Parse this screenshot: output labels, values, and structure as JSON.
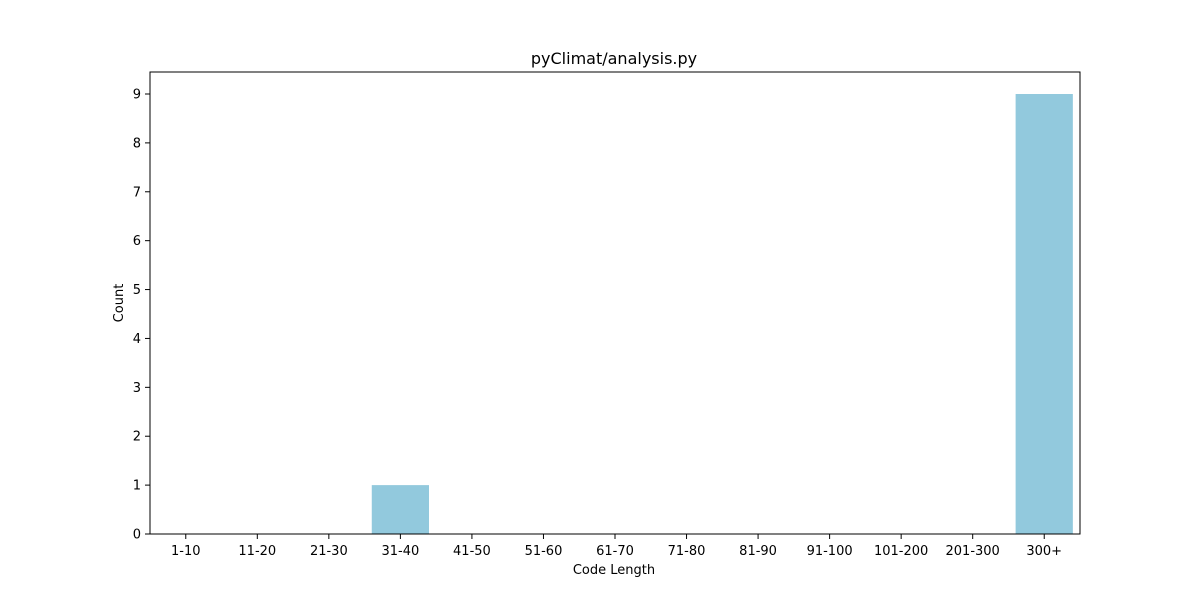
{
  "chart_data": {
    "type": "bar",
    "title": "pyClimat/analysis.py",
    "xlabel": "Code Length",
    "ylabel": "Count",
    "categories": [
      "1-10",
      "11-20",
      "21-30",
      "31-40",
      "41-50",
      "51-60",
      "61-70",
      "71-80",
      "81-90",
      "91-100",
      "101-200",
      "201-300",
      "300+"
    ],
    "values": [
      0,
      0,
      0,
      1,
      0,
      0,
      0,
      0,
      0,
      0,
      0,
      0,
      9
    ],
    "ylim": [
      0,
      9.45
    ],
    "yticks": [
      "0",
      "1",
      "2",
      "3",
      "4",
      "5",
      "6",
      "7",
      "8",
      "9"
    ],
    "grid": false,
    "bar_color": "#92c9dd"
  }
}
